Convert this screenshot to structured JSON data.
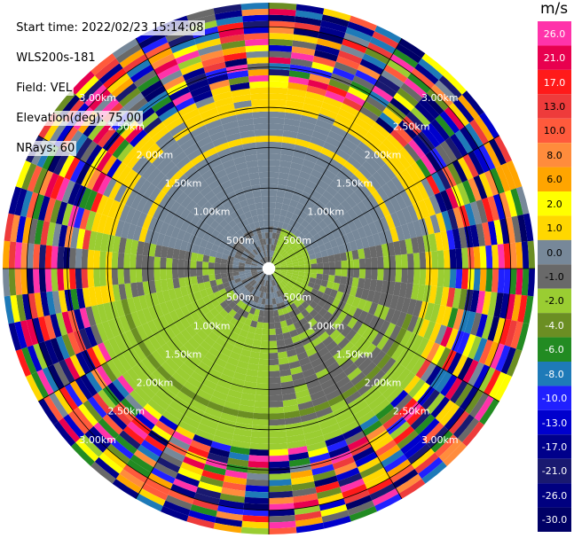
{
  "info": {
    "start_time": "Start time: 2022/02/23 15:14:08",
    "instrument": "WLS200s-181",
    "field": "Field: VEL",
    "elevation": "Elevation(deg): 75.00",
    "nrays": "NRays: 60"
  },
  "colorbar": {
    "unit": "m/s",
    "levels": [
      {
        "label": "26.0",
        "color": "#ff33aa"
      },
      {
        "label": "21.0",
        "color": "#e8004f"
      },
      {
        "label": "17.0",
        "color": "#ff1a1a"
      },
      {
        "label": "13.0",
        "color": "#ee3b3b"
      },
      {
        "label": "10.0",
        "color": "#ff5a3c"
      },
      {
        "label": "8.0",
        "color": "#ff8c3c"
      },
      {
        "label": "6.0",
        "color": "#ffa500"
      },
      {
        "label": "2.0",
        "color": "#ffff00"
      },
      {
        "label": "1.0",
        "color": "#ffd700"
      },
      {
        "label": "0.0",
        "color": "#778899"
      },
      {
        "label": "-1.0",
        "color": "#696969"
      },
      {
        "label": "-2.0",
        "color": "#9acd32"
      },
      {
        "label": "-4.0",
        "color": "#6b8e23"
      },
      {
        "label": "-6.0",
        "color": "#228b22"
      },
      {
        "label": "-8.0",
        "color": "#1e7ab8"
      },
      {
        "label": "-10.0",
        "color": "#2020ff"
      },
      {
        "label": "-13.0",
        "color": "#0000cd"
      },
      {
        "label": "-17.0",
        "color": "#00008b"
      },
      {
        "label": "-21.0",
        "color": "#191970"
      },
      {
        "label": "-26.0",
        "color": "#000080"
      },
      {
        "label": "-30.0",
        "color": "#000066"
      }
    ]
  },
  "chart_data": {
    "type": "heatmap",
    "projection": "polar PPI",
    "range_rings": [
      "500m",
      "1.00km",
      "1.50km",
      "2.00km",
      "2.50km",
      "3.00km"
    ],
    "range_ring_km": [
      0.5,
      1.0,
      1.5,
      2.0,
      2.5,
      3.0
    ],
    "max_range_km": 3.3,
    "spokes": 12,
    "nrays": 60,
    "velocity_zones": [
      {
        "range_km": [
          0.0,
          0.5
        ],
        "description": "mixed near-zero",
        "values_ms": [
          -2.0,
          -1.0,
          0.0
        ]
      },
      {
        "range_km": [
          0.5,
          1.9
        ],
        "north_half_ms": 0.0,
        "south_half_ms": -1.0,
        "southwest_ms": -2.0
      },
      {
        "range_km": [
          1.9,
          2.2
        ],
        "north_ms": 1.0,
        "south_ms": -2.0
      },
      {
        "range_km": [
          2.2,
          3.3
        ],
        "description": "noisy mixed velocities",
        "values_ms": [
          -30.0,
          26.0
        ]
      }
    ]
  }
}
